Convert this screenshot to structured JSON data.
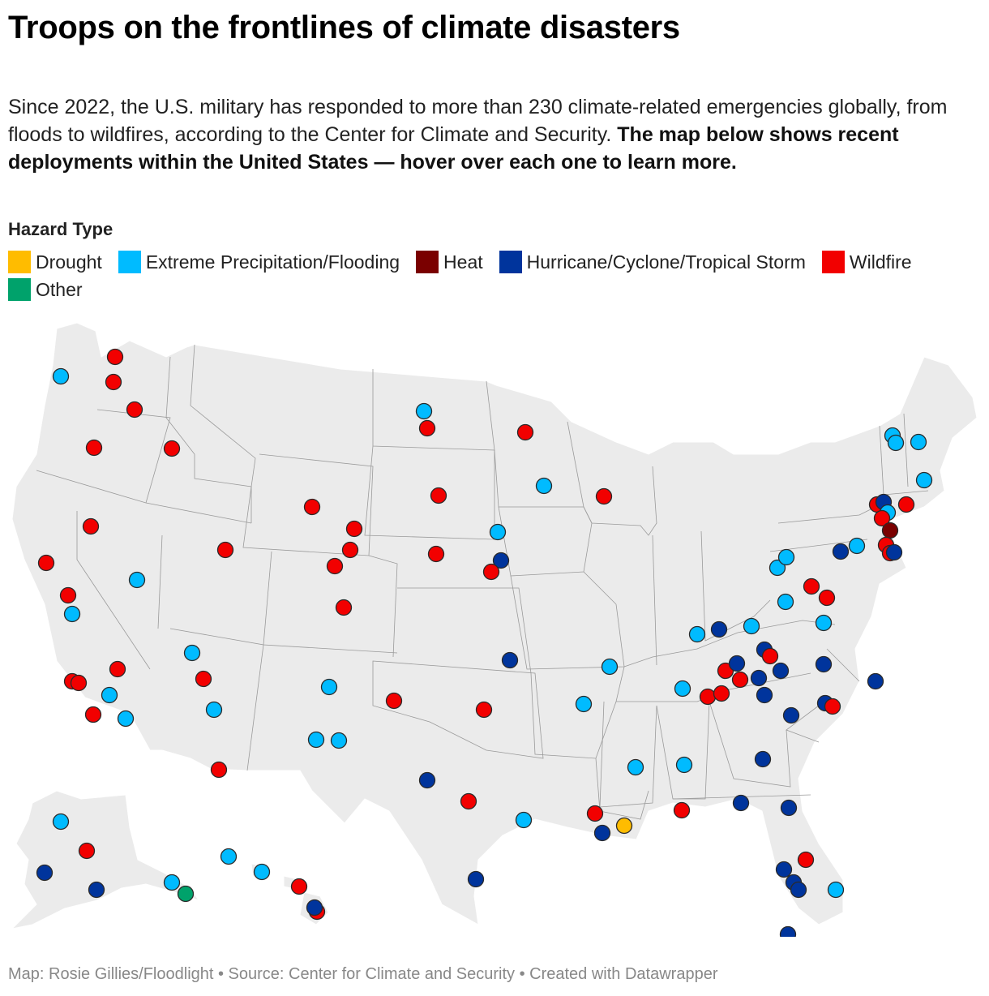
{
  "title": "Troops on the frontlines of climate disasters",
  "description": {
    "plain": "Since 2022, the U.S. military has responded to more than 230 climate-related emergencies globally, from floods to wildfires, according to the Center for Climate and Security. ",
    "bold": "The map below shows recent deployments within the United States — hover over each one to learn more."
  },
  "legend": {
    "title": "Hazard Type",
    "items": [
      {
        "label": "Drought",
        "color": "#ffbc00"
      },
      {
        "label": "Extreme Precipitation/Flooding",
        "color": "#00bbff"
      },
      {
        "label": "Heat",
        "color": "#7a0000"
      },
      {
        "label": "Hurricane/Cyclone/Tropical Storm",
        "color": "#00349c"
      },
      {
        "label": "Wildfire",
        "color": "#f20000"
      },
      {
        "label": "Other",
        "color": "#00a26b"
      }
    ]
  },
  "map": {
    "land_color": "#ebebeb",
    "border_color": "#9a9a9a"
  },
  "credits": "Map: Rosie Gillies/Floodlight • Source: Center for Climate and Security • Created with Datawrapper"
}
